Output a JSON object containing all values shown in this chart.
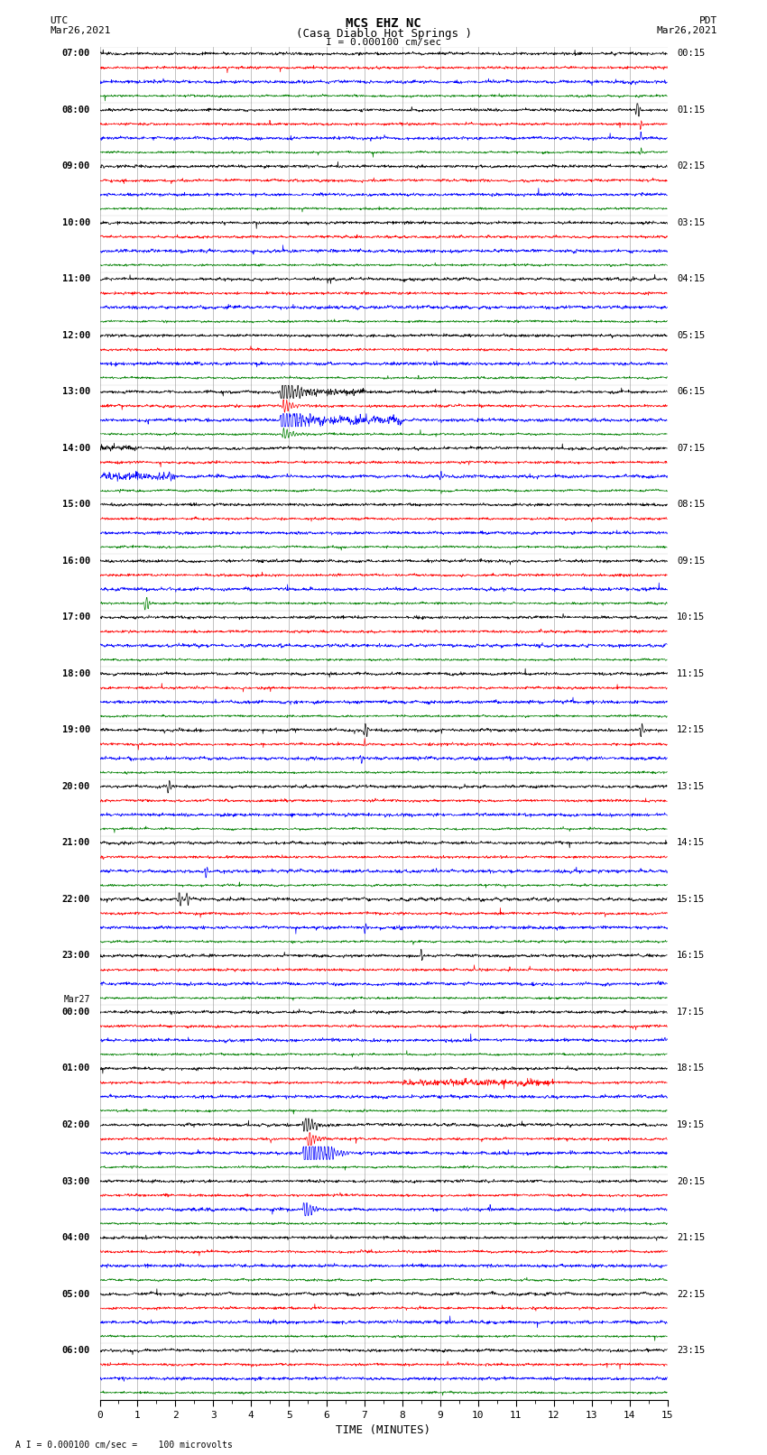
{
  "title_line1": "MCS EHZ NC",
  "title_line2": "(Casa Diablo Hot Springs )",
  "scale_label": "I = 0.000100 cm/sec",
  "footer_label": "A I = 0.000100 cm/sec =    100 microvolts",
  "xlabel": "TIME (MINUTES)",
  "fig_width": 8.5,
  "fig_height": 16.13,
  "dpi": 100,
  "bg_color": "#ffffff",
  "grid_color": "#888888",
  "trace_colors": [
    "black",
    "red",
    "blue",
    "green"
  ],
  "x_ticks": [
    0,
    1,
    2,
    3,
    4,
    5,
    6,
    7,
    8,
    9,
    10,
    11,
    12,
    13,
    14,
    15
  ],
  "utc_times": [
    "07:00",
    "08:00",
    "09:00",
    "10:00",
    "11:00",
    "12:00",
    "13:00",
    "14:00",
    "15:00",
    "16:00",
    "17:00",
    "18:00",
    "19:00",
    "20:00",
    "21:00",
    "22:00",
    "23:00",
    "00:00",
    "01:00",
    "02:00",
    "03:00",
    "04:00",
    "05:00",
    "06:00"
  ],
  "pdt_times": [
    "00:15",
    "01:15",
    "02:15",
    "03:15",
    "04:15",
    "05:15",
    "06:15",
    "07:15",
    "08:15",
    "09:15",
    "10:15",
    "11:15",
    "12:15",
    "13:15",
    "14:15",
    "15:15",
    "16:15",
    "17:15",
    "18:15",
    "19:15",
    "20:15",
    "21:15",
    "22:15",
    "23:15"
  ],
  "mar27_row": 17,
  "num_rows": 24,
  "seed": 12345
}
